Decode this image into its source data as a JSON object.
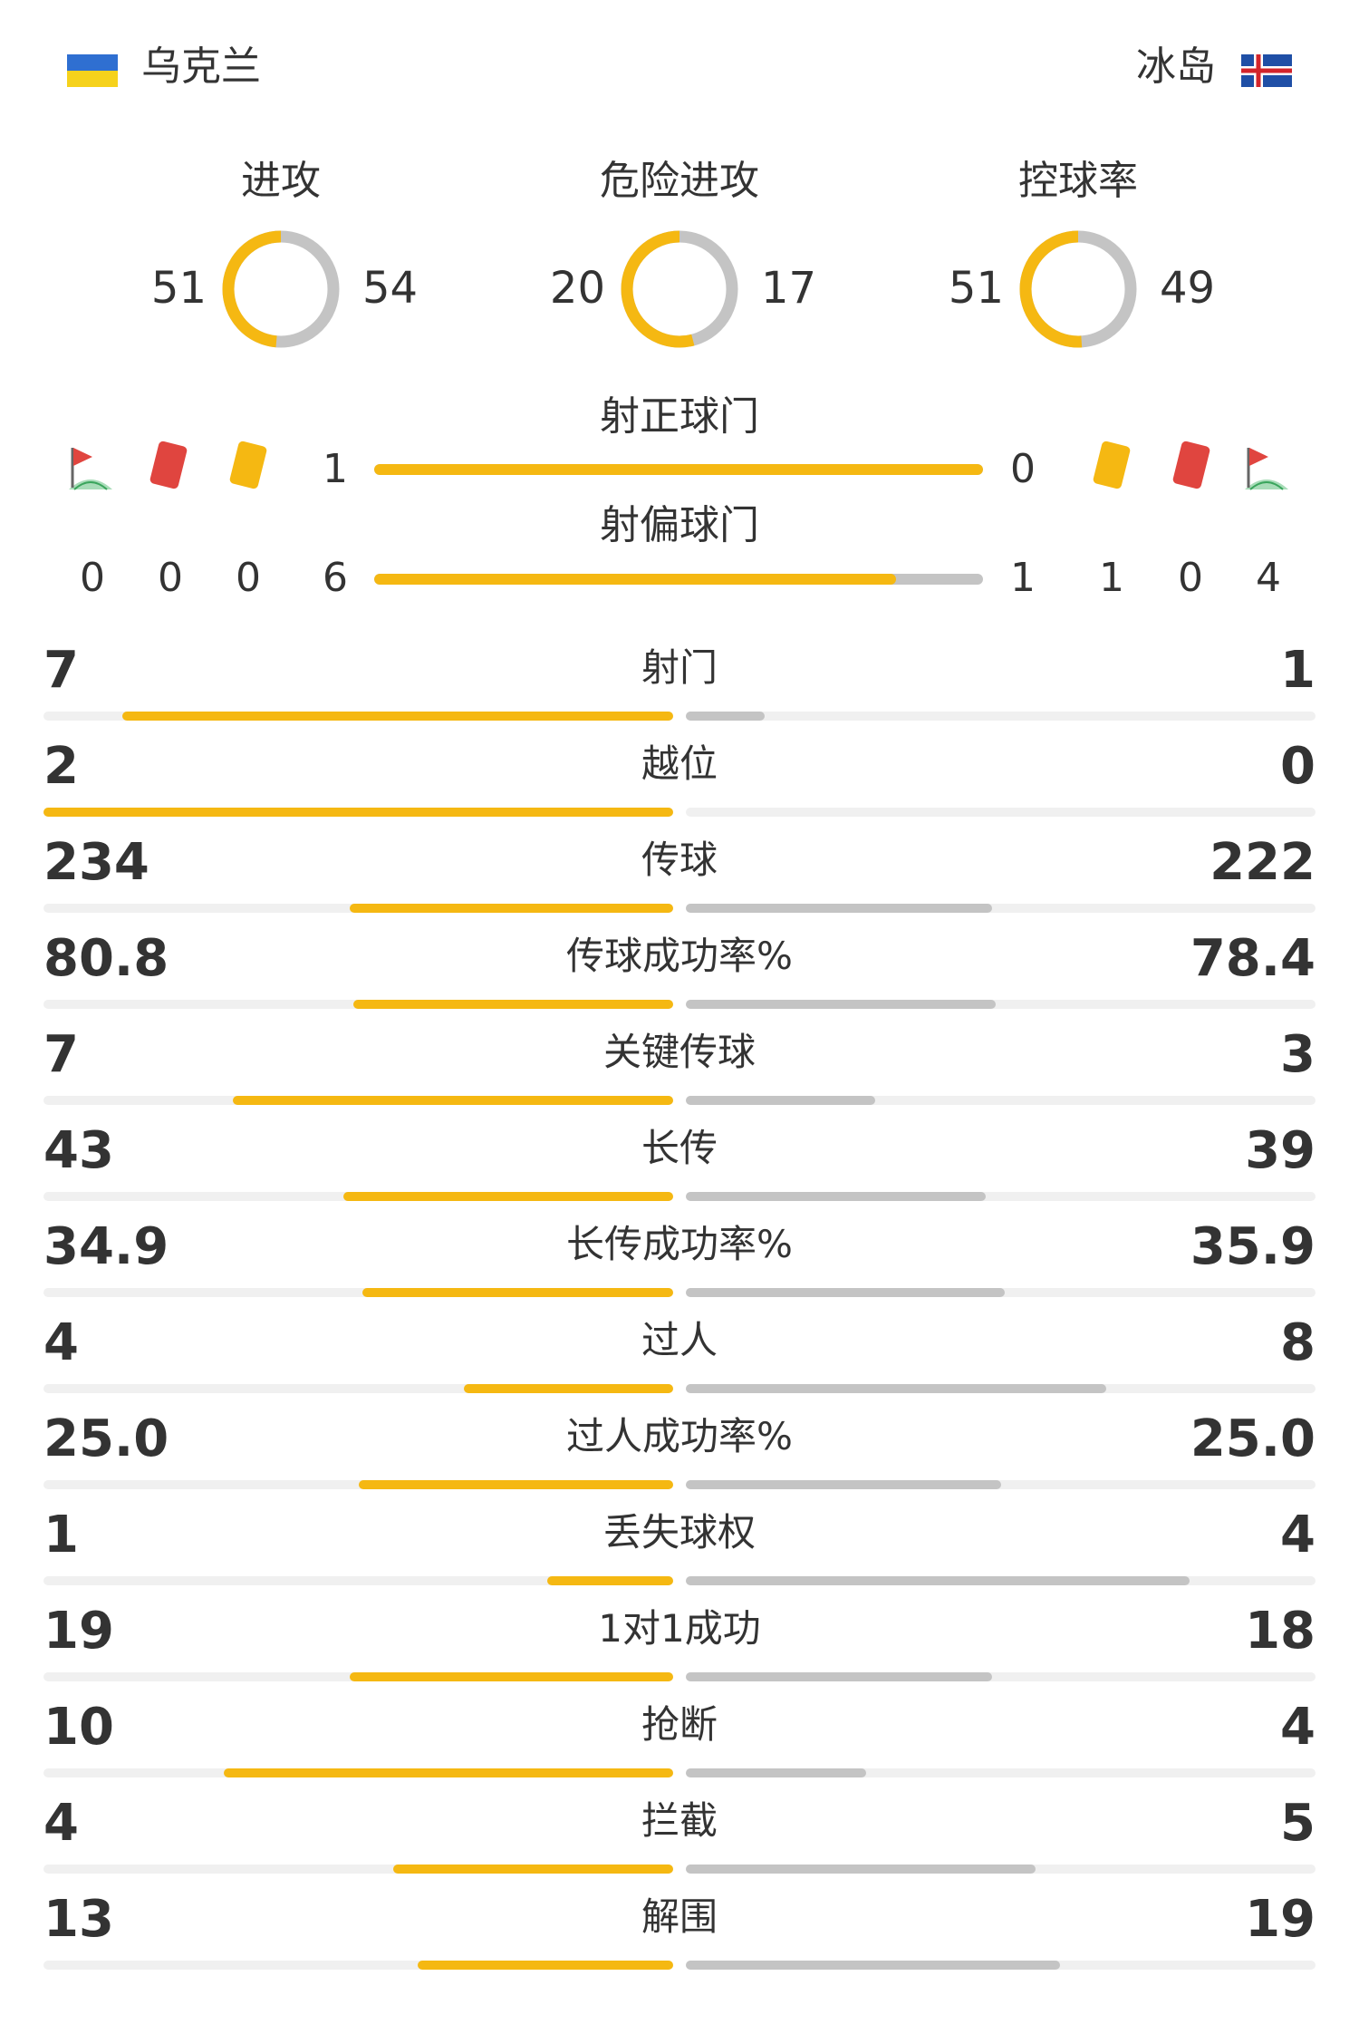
{
  "home": {
    "name": "乌克兰",
    "flag": "ukraine-flag",
    "shots_on": "1",
    "shots_off": "6",
    "corners": "0",
    "red_cards": "0",
    "yellow_cards": "0",
    "color": "#f5b812"
  },
  "away": {
    "name": "冰岛",
    "flag": "iceland-flag",
    "shots_on": "0",
    "shots_off": "1",
    "yellow_cards": "1",
    "red_cards": "0",
    "corners": "4",
    "color": "#c4c4c4"
  },
  "donuts": [
    {
      "title": "进攻",
      "home": "51",
      "away": "54",
      "home_value": 51,
      "away_value": 54
    },
    {
      "title": "危险进攻",
      "home": "20",
      "away": "17",
      "home_value": 20,
      "away_value": 17
    },
    {
      "title": "控球率",
      "home": "51",
      "away": "49",
      "home_value": 51,
      "away_value": 49
    }
  ],
  "shots_on_target": {
    "label": "射正球门",
    "home_fraction": 1.0
  },
  "shots_off_target": {
    "label": "射偏球门",
    "home_fraction": 0.857
  },
  "icons": {
    "corner": "corner-flag-icon",
    "red_card": "red-card-icon",
    "yellow_card": "yellow-card-icon"
  },
  "stats": [
    {
      "label": "射门",
      "home": "7",
      "away": "1",
      "home_fraction": 0.875,
      "away_fraction": 0.125
    },
    {
      "label": "越位",
      "home": "2",
      "away": "0",
      "home_fraction": 1.0,
      "away_fraction": 0.0
    },
    {
      "label": "传球",
      "home": "234",
      "away": "222",
      "home_fraction": 0.513,
      "away_fraction": 0.487
    },
    {
      "label": "传球成功率%",
      "home": "80.8",
      "away": "78.4",
      "home_fraction": 0.508,
      "away_fraction": 0.492
    },
    {
      "label": "关键传球",
      "home": "7",
      "away": "3",
      "home_fraction": 0.7,
      "away_fraction": 0.3
    },
    {
      "label": "长传",
      "home": "43",
      "away": "39",
      "home_fraction": 0.524,
      "away_fraction": 0.476
    },
    {
      "label": "长传成功率%",
      "home": "34.9",
      "away": "35.9",
      "home_fraction": 0.493,
      "away_fraction": 0.507
    },
    {
      "label": "过人",
      "home": "4",
      "away": "8",
      "home_fraction": 0.333,
      "away_fraction": 0.667
    },
    {
      "label": "过人成功率%",
      "home": "25.0",
      "away": "25.0",
      "home_fraction": 0.5,
      "away_fraction": 0.5
    },
    {
      "label": "丢失球权",
      "home": "1",
      "away": "4",
      "home_fraction": 0.2,
      "away_fraction": 0.8
    },
    {
      "label": "1对1成功",
      "home": "19",
      "away": "18",
      "home_fraction": 0.514,
      "away_fraction": 0.486
    },
    {
      "label": "抢断",
      "home": "10",
      "away": "4",
      "home_fraction": 0.714,
      "away_fraction": 0.286
    },
    {
      "label": "拦截",
      "home": "4",
      "away": "5",
      "home_fraction": 0.444,
      "away_fraction": 0.556
    },
    {
      "label": "解围",
      "home": "13",
      "away": "19",
      "home_fraction": 0.406,
      "away_fraction": 0.594
    }
  ]
}
